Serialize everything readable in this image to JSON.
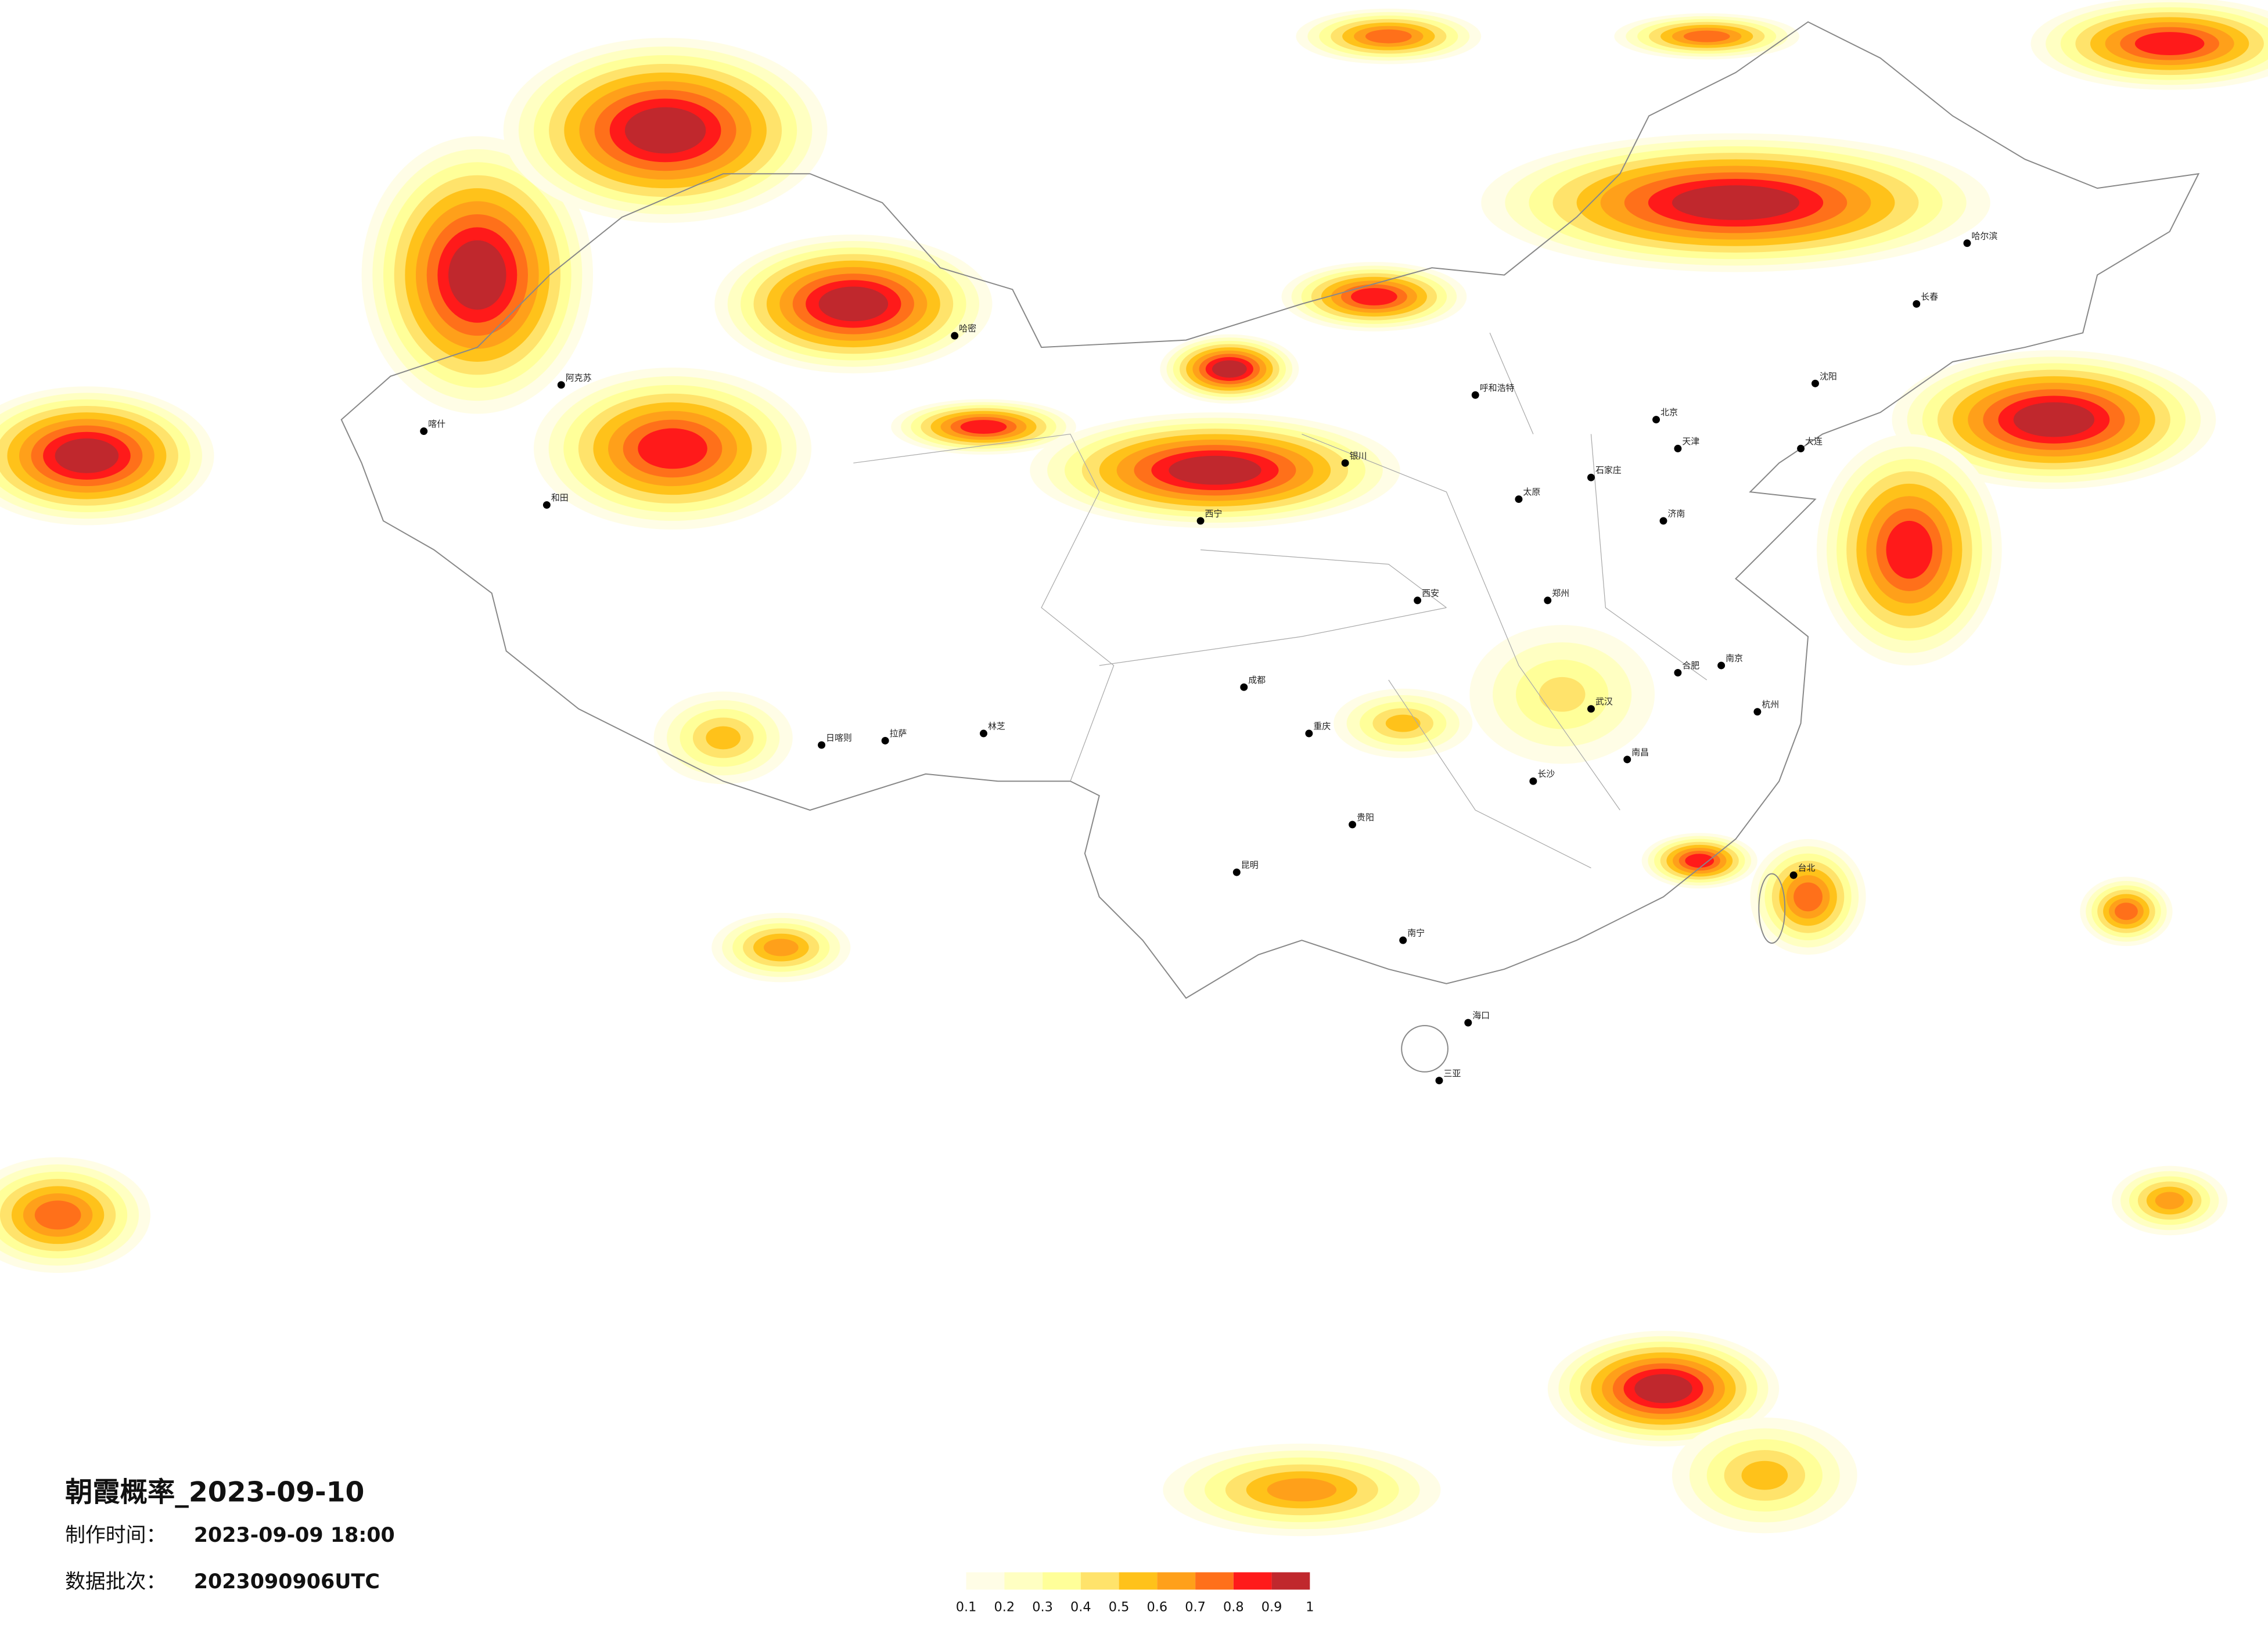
{
  "header": {
    "title": "朝霞概率_2023-09-10",
    "time_label": "制作时间：",
    "time": "2023-09-09 18:00",
    "batch_label": "数据批次：",
    "batch": "2023090906UTC"
  },
  "legend": {
    "ticks": [
      0.1,
      0.2,
      0.3,
      0.4,
      0.5,
      0.6,
      0.7,
      0.8,
      0.9,
      1
    ],
    "colors": [
      "#fffde6",
      "#ffffc2",
      "#ffff99",
      "#ffe36b",
      "#ffc21a",
      "#ffa01a",
      "#ff701a",
      "#ff1a1a",
      "#c0282d"
    ]
  },
  "cities": [
    "喀什",
    "阿克苏",
    "和田",
    "哈密",
    "拉萨",
    "日喀则",
    "林芝",
    "西宁",
    "银川",
    "成都",
    "重庆",
    "贵阳",
    "昆明",
    "南宁",
    "海口",
    "三亚",
    "台北",
    "南昌",
    "长沙",
    "武汉",
    "郑州",
    "济南",
    "北京",
    "天津",
    "石家庄",
    "太原",
    "呼和浩特",
    "哈尔滨",
    "长春",
    "沈阳",
    "大连",
    "南京",
    "杭州",
    "合肥",
    "西安"
  ]
}
